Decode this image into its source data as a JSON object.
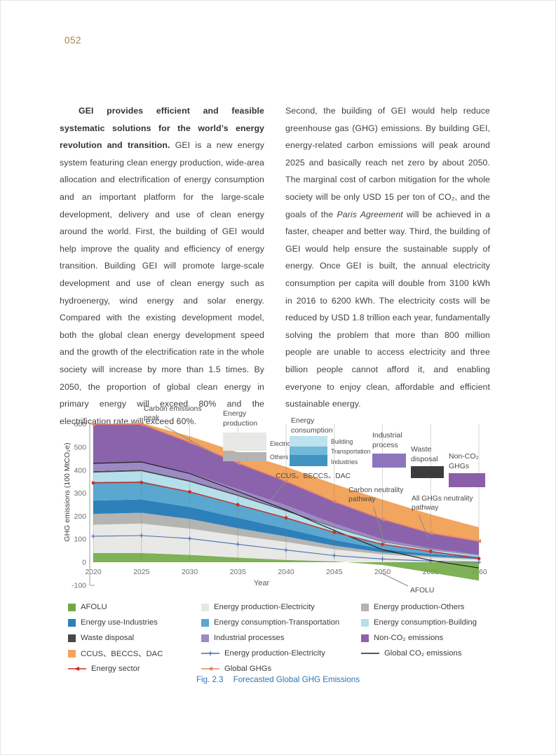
{
  "page": {
    "number": "052"
  },
  "article": {
    "left_column_runs": [
      {
        "t": "GEI provides efficient and feasible systematic solutions for the world’s energy revolution and transition.",
        "b": true
      },
      {
        "t": " GEI is a new energy system featuring clean energy production, wide-area allocation and electrification of energy consumption and an important platform for the large-scale development, delivery and use of clean energy around the world. First, the building of GEI would help improve the quality and efficiency of energy transition. Building GEI will promote large-scale development and use of clean energy such as hydroenergy, wind energy and solar energy. Compared with the existing development model, both the global clean energy development speed and the growth of the electrification rate in the whole society will increase by more than 1.5 times. By 2050, the proportion of global clean energy in primary energy will exceed 80% and the electrification rate will exceed 60%."
      }
    ],
    "right_column_runs": [
      {
        "t": "Second, the building of GEI would help reduce greenhouse gas (GHG) emissions. By building GEI, energy-related carbon emissions will peak around 2025 and basically reach net zero by about 2050. The marginal cost of carbon mitigation for the whole society will be only USD 15 per ton of CO₂, and the goals of the "
      },
      {
        "t": "Paris Agreement",
        "i": true
      },
      {
        "t": " will be achieved in a faster, cheaper and better way. Third, the building of GEI would help ensure the sustainable supply of energy. Once GEI is built, the annual electricity consumption per capita will double from 3100 kWh in 2016 to 6200 kWh. The electricity costs will be reduced by USD 1.8 trillion each year, fundamentally solving the problem that more than 800 million people are unable to access electricity and three billion people cannot afford it, and enabling everyone to enjoy clean, affordable and efficient sustainable energy."
      }
    ]
  },
  "figure": {
    "caption_prefix": "Fig. 2.3",
    "caption_title": "Forecasted Global GHG Emissions"
  },
  "chart_data": {
    "type": "area",
    "title": "Forecasted Global GHG Emissions",
    "xlabel": "Year",
    "ylabel": "GHG emissions (100 MtCO₂e)",
    "years": [
      2020,
      2025,
      2030,
      2035,
      2040,
      2045,
      2050,
      2055,
      2060
    ],
    "y_ticks": [
      600,
      500,
      400,
      300,
      200,
      100,
      0,
      -100
    ],
    "ylim": [
      -100,
      620
    ],
    "grid": "vertical",
    "afolu": {
      "name": "AFOLU",
      "color": "#71a845",
      "values": [
        40,
        40,
        32,
        20,
        10,
        4,
        -12,
        -45,
        -80
      ]
    },
    "stack_base": [
      40,
      40,
      32,
      20,
      10,
      4,
      0,
      0,
      0
    ],
    "stack": [
      {
        "name": "Energy production-Electricity",
        "color": "#e8e8e6",
        "top": [
          163,
          168,
          146,
          116,
          88,
          56,
          34,
          20,
          11
        ]
      },
      {
        "name": "Energy production-Others",
        "color": "#b4b4b2",
        "top": [
          210,
          215,
          188,
          148,
          112,
          72,
          43,
          26,
          14
        ]
      },
      {
        "name": "Energy use-Industries",
        "color": "#2e80ba",
        "top": [
          268,
          273,
          240,
          193,
          146,
          97,
          57,
          35,
          20
        ]
      },
      {
        "name": "Energy consumption-Transportation",
        "color": "#5aa7cf",
        "top": [
          350,
          352,
          308,
          250,
          192,
          128,
          76,
          46,
          25
        ]
      },
      {
        "name": "Energy consumption-Building",
        "color": "#b5dfea",
        "top": [
          390,
          396,
          350,
          288,
          222,
          150,
          88,
          53,
          29
        ]
      },
      {
        "name": "Waste disposal",
        "color": "#474747",
        "top": [
          396,
          402,
          356,
          293,
          226,
          153,
          90,
          54,
          30
        ]
      },
      {
        "name": "Industrial processes",
        "color": "#9c8ac4",
        "top": [
          430,
          436,
          388,
          318,
          248,
          168,
          100,
          60,
          33
        ]
      },
      {
        "name": "Non-CO₂ GHGs",
        "color": "#8b63ac",
        "top": [
          600,
          600,
          520,
          430,
          350,
          262,
          185,
          125,
          90
        ]
      },
      {
        "name": "CCUS、BECCS、DAC",
        "color": "#f2a55e",
        "top": [
          600,
          606,
          548,
          478,
          415,
          340,
          272,
          208,
          152
        ]
      }
    ],
    "lines": [
      {
        "name": "Energy production-Electricity",
        "color": "#4a6cb3",
        "marker": "plus",
        "width": 1.1,
        "values": [
          113,
          116,
          103,
          78,
          53,
          29,
          14,
          5,
          0
        ]
      },
      {
        "name": "Global CO₂ emissions",
        "color": "#222222",
        "marker": "none",
        "width": 1.2,
        "values": [
          430,
          436,
          386,
          308,
          228,
          138,
          55,
          8,
          -25
        ]
      },
      {
        "name": "Energy sector",
        "color": "#c92e24",
        "marker": "dot",
        "width": 1.4,
        "values": [
          345,
          347,
          306,
          250,
          193,
          130,
          78,
          47,
          16
        ]
      },
      {
        "name": "Global GHGs",
        "color": "#e8806c",
        "marker": "tri",
        "width": 1.4,
        "values": [
          600,
          600,
          522,
          432,
          352,
          264,
          187,
          127,
          92
        ]
      }
    ],
    "annotations": [
      {
        "text": [
          "Carbon emissions",
          "peak"
        ],
        "x": 120,
        "y": 14,
        "leader": [
          150,
          36,
          222,
          76
        ]
      },
      {
        "text": [
          "CCUS、BECCS、DAC"
        ],
        "x": 308,
        "y": 110,
        "leader": [
          322,
          116,
          301,
          141
        ]
      },
      {
        "text": [
          "Carbon neutrality",
          "pathway"
        ],
        "x": 412,
        "y": 130,
        "leader": [
          448,
          152,
          467,
          213
        ]
      },
      {
        "text": [
          "All GHGs neutrality",
          "pathway"
        ],
        "x": 502,
        "y": 142,
        "leader": [
          512,
          162,
          526,
          196
        ]
      },
      {
        "text": [
          "AFOLU"
        ],
        "x": 500,
        "y": 273,
        "leader": [
          497,
          264,
          458,
          245
        ]
      }
    ],
    "inner_legends": [
      {
        "title": [
          "Energy",
          "production"
        ],
        "tx": 233,
        "ty": 21,
        "swatches": [
          {
            "color": "#e8e8e6",
            "x": 233,
            "y": 45,
            "w": 62,
            "h": 26,
            "label": "Electricity",
            "lx": 300,
            "ly": 64
          },
          {
            "color": "#b4b4b2",
            "x": 233,
            "y": 73,
            "w": 62,
            "h": 13,
            "label": "Others",
            "lx": 300,
            "ly": 83
          }
        ]
      },
      {
        "title": [
          "Energy",
          "consumption"
        ],
        "tx": 330,
        "ty": 31,
        "swatches": [
          {
            "color": "#bce2ed",
            "x": 328,
            "y": 50,
            "w": 54,
            "h": 15,
            "label": "Building",
            "lx": 387,
            "ly": 61
          },
          {
            "color": "#72b8d8",
            "x": 328,
            "y": 65,
            "w": 54,
            "h": 12,
            "label": "Transportation",
            "lx": 387,
            "ly": 75
          },
          {
            "color": "#3f94c1",
            "x": 328,
            "y": 77,
            "w": 54,
            "h": 16,
            "label": "Industries",
            "lx": 387,
            "ly": 90
          }
        ]
      },
      {
        "title": [
          "Industrial",
          "process"
        ],
        "tx": 446,
        "ty": 52,
        "swatches": [
          {
            "color": "#8d75bd",
            "x": 446,
            "y": 75,
            "w": 48,
            "h": 20
          }
        ]
      },
      {
        "title": [
          "Waste",
          "disposal"
        ],
        "tx": 501,
        "ty": 72,
        "swatches": [
          {
            "color": "#3c3c3c",
            "x": 501,
            "y": 93,
            "w": 47,
            "h": 17
          }
        ]
      },
      {
        "title": [
          "Non-CO₂",
          "GHGs"
        ],
        "tx": 555,
        "ty": 82,
        "swatches": [
          {
            "color": "#8a5fa8",
            "x": 555,
            "y": 103,
            "w": 52,
            "h": 20
          }
        ]
      }
    ],
    "legend": [
      {
        "label": "AFOLU",
        "swatch": "square",
        "color": "#71a845"
      },
      {
        "label": "Energy production-Electricity",
        "swatch": "square",
        "color": "#e6e6e4"
      },
      {
        "label": "Energy production-Others",
        "swatch": "square",
        "color": "#b4b4b2"
      },
      {
        "label": "Energy use-Industries",
        "swatch": "square",
        "color": "#2e80ba"
      },
      {
        "label": "Energy consumption-Transportation",
        "swatch": "square",
        "color": "#5aa7cf"
      },
      {
        "label": "Energy consumption-Building",
        "swatch": "square",
        "color": "#b5dfea"
      },
      {
        "label": "Waste disposal",
        "swatch": "square",
        "color": "#474747"
      },
      {
        "label": "Industrial processes",
        "swatch": "square",
        "color": "#9c8ac4"
      },
      {
        "label": "Non-CO₂ emissions",
        "swatch": "square",
        "color": "#8b63ac"
      },
      {
        "label": "CCUS、BECCS、DAC",
        "swatch": "square",
        "color": "#f2a55e"
      },
      {
        "label": "Energy production-Electricity",
        "swatch": "line-plus",
        "color": "#4a6cb3"
      },
      {
        "label": "Global CO₂ emissions",
        "swatch": "line-plain",
        "color": "#222222"
      },
      {
        "label": "Energy sector",
        "swatch": "line-arrow",
        "color": "#c92e24"
      },
      {
        "label": "Global GHGs",
        "swatch": "line-arrow",
        "color": "#e8806c"
      }
    ]
  }
}
